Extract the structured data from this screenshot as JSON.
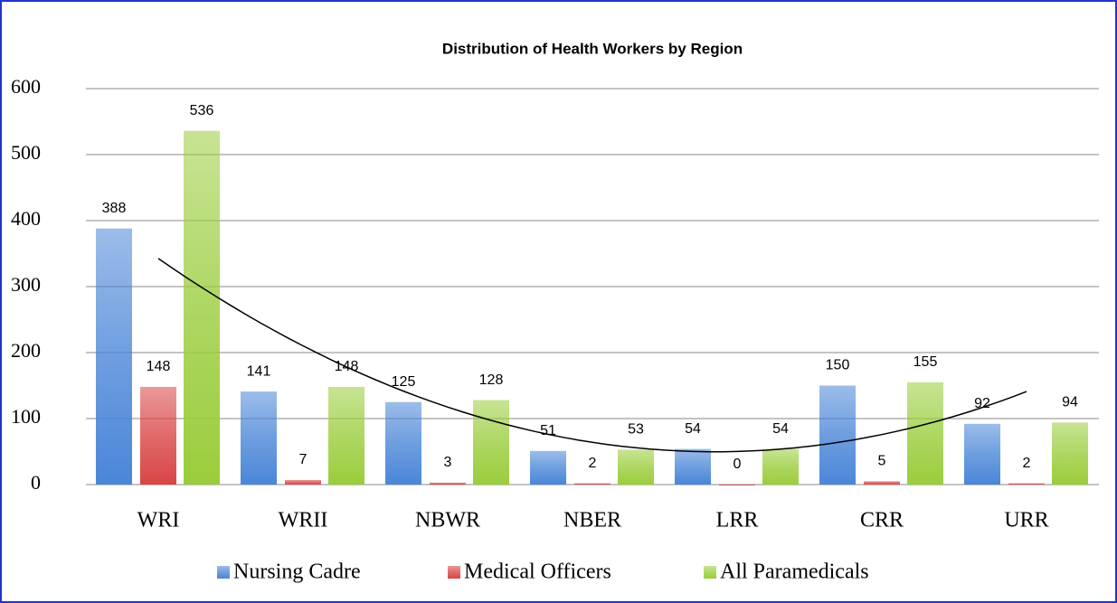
{
  "chart_data": {
    "type": "bar",
    "title": "Distribution of Health Workers by Region",
    "categories": [
      "WRI",
      "WRII",
      "NBWR",
      "NBER",
      "LRR",
      "CRR",
      "URR"
    ],
    "series": [
      {
        "name": "Nursing Cadre",
        "color": "#4a86d8",
        "values": [
          388,
          141,
          125,
          51,
          54,
          150,
          92
        ]
      },
      {
        "name": "Medical Officers",
        "color": "#d94545",
        "values": [
          148,
          7,
          3,
          2,
          0,
          5,
          2
        ]
      },
      {
        "name": "All Paramedicals",
        "color": "#9acd3c",
        "values": [
          536,
          148,
          128,
          53,
          54,
          155,
          94
        ]
      }
    ],
    "ylim": [
      0,
      600
    ],
    "yticks": [
      0,
      100,
      200,
      300,
      400,
      500,
      600
    ],
    "grid": true,
    "legend": "bottom"
  }
}
